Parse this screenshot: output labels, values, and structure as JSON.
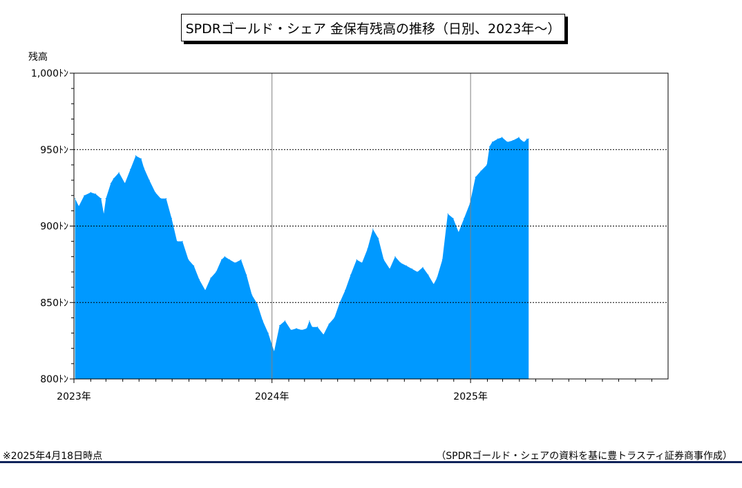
{
  "chart_data": {
    "type": "area",
    "title": "SPDRゴールド・シェア 金保有残高の推移（日別、2023年～）",
    "ylabel": "残高",
    "xlabel": "",
    "ylim": [
      800,
      1000
    ],
    "y_unit": "ﾄﾝ",
    "y_ticks": [
      800,
      850,
      900,
      950,
      1000
    ],
    "y_tick_labels": [
      "800ﾄﾝ",
      "850ﾄﾝ",
      "900ﾄﾝ",
      "950ﾄﾝ",
      "1,000ﾄﾝ"
    ],
    "xlim": [
      "2023-01-01",
      "2025-12-31"
    ],
    "x_tick_labels": [
      "2023年",
      "2024年",
      "2025年"
    ],
    "grid": "horizontal dashed at 850/900/950, vertical solid at year boundaries",
    "series": [
      {
        "color": "#0099ff",
        "x": [
          "2023-01-03",
          "2023-01-10",
          "2023-01-20",
          "2023-02-01",
          "2023-02-10",
          "2023-02-20",
          "2023-02-25",
          "2023-03-01",
          "2023-03-10",
          "2023-03-15",
          "2023-03-25",
          "2023-04-05",
          "2023-04-15",
          "2023-04-25",
          "2023-05-05",
          "2023-05-10",
          "2023-05-20",
          "2023-05-31",
          "2023-06-10",
          "2023-06-20",
          "2023-06-30",
          "2023-07-10",
          "2023-07-20",
          "2023-07-31",
          "2023-08-10",
          "2023-08-20",
          "2023-08-31",
          "2023-09-10",
          "2023-09-20",
          "2023-09-30",
          "2023-10-06",
          "2023-10-15",
          "2023-10-25",
          "2023-11-05",
          "2023-11-15",
          "2023-11-25",
          "2023-12-05",
          "2023-12-15",
          "2023-12-25",
          "2024-01-05",
          "2024-01-15",
          "2024-01-25",
          "2024-02-05",
          "2024-02-15",
          "2024-02-25",
          "2024-03-05",
          "2024-03-10",
          "2024-03-15",
          "2024-03-25",
          "2024-04-05",
          "2024-04-15",
          "2024-04-25",
          "2024-05-05",
          "2024-05-15",
          "2024-05-25",
          "2024-06-05",
          "2024-06-15",
          "2024-06-25",
          "2024-07-05",
          "2024-07-15",
          "2024-07-25",
          "2024-08-05",
          "2024-08-15",
          "2024-08-25",
          "2024-09-05",
          "2024-09-15",
          "2024-09-25",
          "2024-10-05",
          "2024-10-15",
          "2024-10-25",
          "2024-10-31",
          "2024-11-10",
          "2024-11-20",
          "2024-11-30",
          "2024-12-10",
          "2024-12-20",
          "2024-12-31",
          "2025-01-10",
          "2025-01-20",
          "2025-01-31",
          "2025-02-05",
          "2025-02-10",
          "2025-02-20",
          "2025-02-28",
          "2025-03-10",
          "2025-03-20",
          "2025-03-31",
          "2025-04-05",
          "2025-04-10",
          "2025-04-15",
          "2025-04-18"
        ],
        "values": [
          918,
          913,
          920,
          922,
          921,
          918,
          908,
          918,
          928,
          931,
          935,
          928,
          937,
          946,
          944,
          938,
          930,
          922,
          918,
          918,
          905,
          890,
          890,
          878,
          874,
          865,
          858,
          866,
          870,
          878,
          880,
          878,
          876,
          878,
          868,
          855,
          849,
          838,
          830,
          818,
          835,
          838,
          832,
          833,
          832,
          833,
          838,
          834,
          834,
          829,
          836,
          840,
          850,
          858,
          868,
          878,
          876,
          885,
          898,
          892,
          878,
          872,
          880,
          876,
          874,
          872,
          870,
          873,
          868,
          862,
          866,
          878,
          908,
          905,
          896,
          905,
          915,
          932,
          936,
          940,
          952,
          955,
          957,
          958,
          955,
          956,
          958,
          956,
          955,
          957,
          957
        ]
      }
    ]
  },
  "footnote_left": "※2025年4月18日時点",
  "footnote_right": "（SPDRゴールド・シェアの資料を基に豊トラスティ証券商事作成）"
}
